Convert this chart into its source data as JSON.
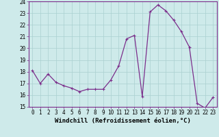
{
  "x": [
    0,
    1,
    2,
    3,
    4,
    5,
    6,
    7,
    8,
    9,
    10,
    11,
    12,
    13,
    14,
    15,
    16,
    17,
    18,
    19,
    20,
    21,
    22,
    23
  ],
  "y": [
    18.1,
    17.0,
    17.8,
    17.1,
    16.8,
    16.6,
    16.3,
    16.5,
    16.5,
    16.5,
    17.3,
    18.5,
    20.8,
    21.1,
    15.9,
    23.1,
    23.7,
    23.2,
    22.4,
    21.4,
    20.1,
    15.3,
    14.9,
    15.8
  ],
  "line_color": "#7B2D8B",
  "marker": "+",
  "marker_size": 3,
  "marker_lw": 0.8,
  "bg_color": "#ceeaea",
  "grid_color": "#aad0d0",
  "xlabel": "Windchill (Refroidissement éolien,°C)",
  "ylim": [
    15,
    24
  ],
  "yticks": [
    15,
    16,
    17,
    18,
    19,
    20,
    21,
    22,
    23,
    24
  ],
  "xticks": [
    0,
    1,
    2,
    3,
    4,
    5,
    6,
    7,
    8,
    9,
    10,
    11,
    12,
    13,
    14,
    15,
    16,
    17,
    18,
    19,
    20,
    21,
    22,
    23
  ],
  "tick_fontsize": 5.5,
  "xlabel_fontsize": 6.5,
  "line_width": 0.9,
  "spine_color": "#7B2D8B"
}
